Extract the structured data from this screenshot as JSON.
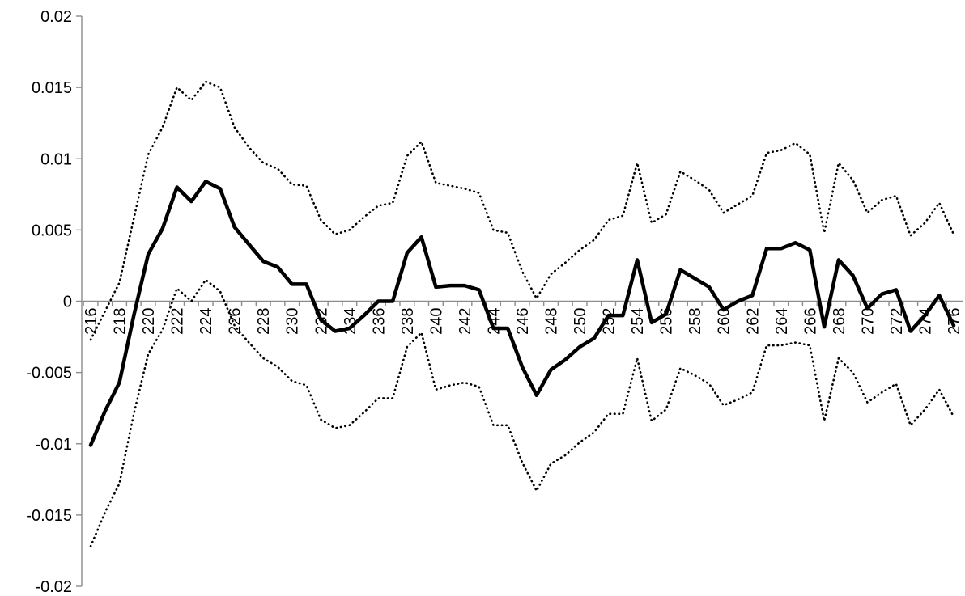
{
  "chart_data": {
    "type": "line",
    "title": "",
    "xlabel": "",
    "ylabel": "",
    "x": [
      216,
      217,
      218,
      219,
      220,
      221,
      222,
      223,
      224,
      225,
      226,
      227,
      228,
      229,
      230,
      231,
      232,
      233,
      234,
      235,
      236,
      237,
      238,
      239,
      240,
      241,
      242,
      243,
      244,
      245,
      246,
      247,
      248,
      249,
      250,
      251,
      252,
      253,
      254,
      255,
      256,
      257,
      258,
      259,
      260,
      261,
      262,
      263,
      264,
      265,
      266,
      267,
      268,
      269,
      270,
      271,
      272,
      273,
      274,
      275,
      276
    ],
    "x_tick_labels": [
      "216",
      "218",
      "220",
      "222",
      "224",
      "226",
      "228",
      "230",
      "232",
      "234",
      "236",
      "238",
      "240",
      "242",
      "244",
      "246",
      "248",
      "250",
      "252",
      "254",
      "256",
      "258",
      "260",
      "262",
      "264",
      "266",
      "268",
      "270",
      "272",
      "274",
      "276"
    ],
    "y_tick_labels": [
      "0.02",
      "0.015",
      "0.01",
      "0.005",
      "0",
      "-0.005",
      "-0.01",
      "-0.015",
      "-0.02"
    ],
    "ylim": [
      -0.02,
      0.02
    ],
    "grid": false,
    "legend": "none",
    "colors": {
      "line": "#000000",
      "axis": "#8c8c8c"
    },
    "series": [
      {
        "style": "solid",
        "values": [
          -0.0101,
          -0.0077,
          -0.0057,
          -0.001,
          0.0033,
          0.0051,
          0.008,
          0.007,
          0.0084,
          0.0079,
          0.0052,
          0.004,
          0.0028,
          0.0024,
          0.0012,
          0.0012,
          -0.0013,
          -0.0021,
          -0.0019,
          -0.001,
          0.0,
          0.0,
          0.0034,
          0.0045,
          0.001,
          0.0011,
          0.0011,
          0.0008,
          -0.0019,
          -0.0019,
          -0.0046,
          -0.0066,
          -0.0048,
          -0.0041,
          -0.0032,
          -0.0026,
          -0.001,
          -0.001,
          0.0029,
          -0.0015,
          -0.0009,
          0.0022,
          0.0016,
          0.001,
          -0.0006,
          0.0,
          0.0004,
          0.0037,
          0.0037,
          0.0041,
          0.0036,
          -0.0018,
          0.0029,
          0.0018,
          -0.0005,
          0.0005,
          0.0008,
          -0.0021,
          -0.001,
          0.0004,
          -0.0017
        ]
      },
      {
        "style": "dotted",
        "values": [
          -0.0027,
          -0.0007,
          0.0013,
          0.0058,
          0.0103,
          0.0122,
          0.015,
          0.0141,
          0.0154,
          0.015,
          0.0122,
          0.0108,
          0.0097,
          0.0093,
          0.0082,
          0.0081,
          0.0057,
          0.0047,
          0.005,
          0.0059,
          0.0067,
          0.0069,
          0.0102,
          0.0112,
          0.0083,
          0.0081,
          0.0079,
          0.0076,
          0.005,
          0.0048,
          0.0021,
          0.0002,
          0.0019,
          0.0027,
          0.0036,
          0.0043,
          0.0057,
          0.006,
          0.0097,
          0.0055,
          0.0061,
          0.0091,
          0.0085,
          0.0078,
          0.0062,
          0.0068,
          0.0074,
          0.0104,
          0.0106,
          0.0111,
          0.0103,
          0.0048,
          0.0097,
          0.0085,
          0.0062,
          0.0071,
          0.0074,
          0.0046,
          0.0055,
          0.0069,
          0.0047
        ]
      },
      {
        "style": "dotted",
        "values": [
          -0.0172,
          -0.0148,
          -0.0128,
          -0.0079,
          -0.0037,
          -0.002,
          0.0009,
          0.0,
          0.0015,
          0.0007,
          -0.0017,
          -0.0029,
          -0.004,
          -0.0046,
          -0.0056,
          -0.0059,
          -0.0083,
          -0.0089,
          -0.0087,
          -0.0078,
          -0.0068,
          -0.0068,
          -0.0032,
          -0.0022,
          -0.0062,
          -0.0059,
          -0.0057,
          -0.006,
          -0.0087,
          -0.0087,
          -0.0113,
          -0.0133,
          -0.0114,
          -0.0108,
          -0.0099,
          -0.0092,
          -0.0079,
          -0.0079,
          -0.004,
          -0.0084,
          -0.0076,
          -0.0047,
          -0.0052,
          -0.0058,
          -0.0073,
          -0.0069,
          -0.0064,
          -0.0031,
          -0.0031,
          -0.0029,
          -0.0031,
          -0.0084,
          -0.004,
          -0.005,
          -0.0071,
          -0.0064,
          -0.0058,
          -0.0087,
          -0.0076,
          -0.0062,
          -0.0081
        ]
      }
    ]
  }
}
